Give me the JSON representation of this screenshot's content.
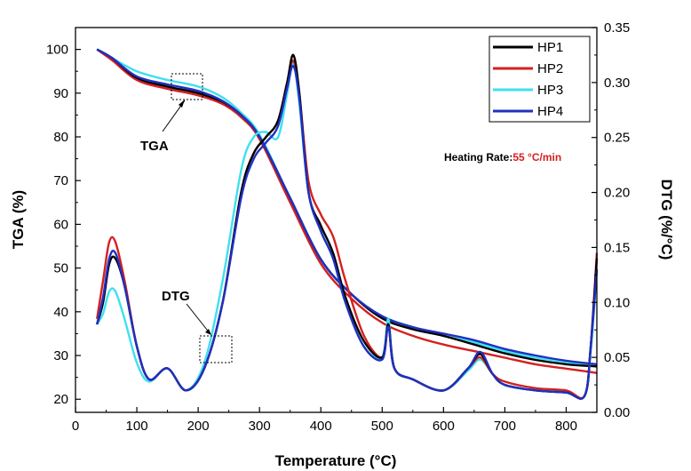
{
  "chart_data": {
    "type": "line",
    "title": "",
    "xlabel": "Temperature (°C)",
    "ylabel_left": "TGA (%)",
    "ylabel_right": "DTG (%/°C)",
    "xlim": [
      0,
      850
    ],
    "ylim_left": [
      17,
      105
    ],
    "ylim_right": [
      0,
      0.35
    ],
    "x_ticks": [
      0,
      100,
      200,
      300,
      400,
      500,
      600,
      700,
      800
    ],
    "y_left_ticks": [
      20,
      30,
      40,
      50,
      60,
      70,
      80,
      90,
      100
    ],
    "y_right_ticks": [
      "0.00",
      "0.05",
      "0.10",
      "0.15",
      "0.20",
      "0.25",
      "0.30",
      "0.35"
    ],
    "grid": false,
    "legend_position": "top-right",
    "annotations": {
      "tga_label": "TGA",
      "dtg_label": "DTG",
      "heating_rate_label": "Heating Rate:",
      "heating_rate_value": "55 °C/min",
      "heating_rate_color": "#d42020"
    },
    "series_colors": {
      "HP1": "#000000",
      "HP2": "#d42020",
      "HP3": "#3ee0f0",
      "HP4": "#2030c0"
    },
    "tga_series": [
      {
        "name": "HP1",
        "x": [
          35,
          60,
          100,
          150,
          200,
          240,
          270,
          300,
          350,
          400,
          450,
          500,
          550,
          600,
          650,
          700,
          750,
          800,
          850
        ],
        "y": [
          100,
          98,
          93.5,
          91.5,
          90,
          88,
          85,
          80,
          66,
          52,
          44,
          38.5,
          36,
          34.5,
          32.5,
          30.5,
          29,
          28,
          27.5
        ]
      },
      {
        "name": "HP2",
        "x": [
          35,
          60,
          100,
          150,
          200,
          240,
          270,
          300,
          350,
          400,
          450,
          500,
          550,
          600,
          650,
          700,
          750,
          800,
          850
        ],
        "y": [
          100,
          97.5,
          93,
          91,
          89.5,
          87.5,
          84.5,
          79.5,
          65,
          51,
          43,
          37.5,
          34.5,
          32.5,
          31,
          29.5,
          28,
          27,
          26
        ]
      },
      {
        "name": "HP3",
        "x": [
          35,
          60,
          100,
          150,
          200,
          240,
          270,
          300,
          350,
          400,
          450,
          500,
          550,
          600,
          650,
          700,
          750,
          800,
          850
        ],
        "y": [
          100,
          98,
          95,
          93,
          91.5,
          89,
          85.5,
          80.5,
          66,
          52,
          44,
          39,
          36.5,
          34.5,
          33,
          31,
          29.5,
          28.5,
          27.5
        ]
      },
      {
        "name": "HP4",
        "x": [
          35,
          60,
          100,
          150,
          200,
          240,
          270,
          300,
          350,
          400,
          450,
          500,
          550,
          600,
          650,
          700,
          750,
          800,
          850
        ],
        "y": [
          100,
          98,
          93.8,
          92,
          90.5,
          88.2,
          85,
          80,
          66,
          52,
          44,
          39,
          36.5,
          35,
          33.5,
          31.5,
          30,
          28.8,
          28
        ]
      }
    ],
    "dtg_series": [
      {
        "name": "HP1",
        "x": [
          35,
          45,
          55,
          65,
          80,
          100,
          120,
          150,
          180,
          210,
          240,
          270,
          290,
          310,
          330,
          345,
          355,
          365,
          380,
          400,
          420,
          440,
          470,
          500,
          510,
          520,
          550,
          600,
          640,
          660,
          680,
          700,
          750,
          800,
          830,
          840,
          850
        ],
        "y": [
          0.08,
          0.1,
          0.135,
          0.14,
          0.115,
          0.06,
          0.03,
          0.04,
          0.02,
          0.04,
          0.1,
          0.2,
          0.235,
          0.25,
          0.265,
          0.3,
          0.325,
          0.29,
          0.2,
          0.17,
          0.145,
          0.105,
          0.065,
          0.05,
          0.08,
          0.04,
          0.03,
          0.02,
          0.04,
          0.053,
          0.035,
          0.025,
          0.02,
          0.018,
          0.015,
          0.06,
          0.14
        ]
      },
      {
        "name": "HP2",
        "x": [
          35,
          45,
          55,
          65,
          80,
          100,
          120,
          150,
          180,
          210,
          240,
          270,
          290,
          310,
          330,
          345,
          355,
          365,
          380,
          400,
          420,
          440,
          470,
          500,
          510,
          520,
          550,
          600,
          640,
          660,
          680,
          700,
          750,
          800,
          830,
          840,
          850
        ],
        "y": [
          0.085,
          0.12,
          0.155,
          0.155,
          0.12,
          0.06,
          0.03,
          0.04,
          0.02,
          0.04,
          0.1,
          0.2,
          0.235,
          0.25,
          0.265,
          0.3,
          0.32,
          0.29,
          0.21,
          0.18,
          0.16,
          0.12,
          0.07,
          0.05,
          0.08,
          0.04,
          0.03,
          0.02,
          0.04,
          0.05,
          0.035,
          0.028,
          0.022,
          0.02,
          0.015,
          0.06,
          0.145
        ]
      },
      {
        "name": "HP3",
        "x": [
          35,
          45,
          55,
          65,
          80,
          100,
          120,
          150,
          180,
          210,
          240,
          270,
          290,
          310,
          330,
          345,
          355,
          365,
          380,
          400,
          420,
          440,
          470,
          500,
          510,
          520,
          550,
          600,
          640,
          660,
          680,
          700,
          750,
          800,
          830,
          840,
          850
        ],
        "y": [
          0.08,
          0.09,
          0.11,
          0.11,
          0.085,
          0.045,
          0.028,
          0.04,
          0.02,
          0.045,
          0.12,
          0.22,
          0.25,
          0.255,
          0.25,
          0.29,
          0.318,
          0.28,
          0.2,
          0.165,
          0.14,
          0.1,
          0.06,
          0.05,
          0.085,
          0.04,
          0.03,
          0.02,
          0.038,
          0.048,
          0.035,
          0.025,
          0.02,
          0.018,
          0.015,
          0.055,
          0.13
        ]
      },
      {
        "name": "HP4",
        "x": [
          35,
          45,
          55,
          65,
          80,
          100,
          120,
          150,
          180,
          210,
          240,
          270,
          290,
          310,
          330,
          345,
          355,
          365,
          380,
          400,
          420,
          440,
          470,
          500,
          510,
          520,
          550,
          600,
          640,
          660,
          680,
          700,
          750,
          800,
          830,
          840,
          850
        ],
        "y": [
          0.08,
          0.105,
          0.14,
          0.145,
          0.115,
          0.06,
          0.03,
          0.04,
          0.02,
          0.04,
          0.1,
          0.195,
          0.23,
          0.245,
          0.26,
          0.295,
          0.315,
          0.285,
          0.2,
          0.165,
          0.14,
          0.1,
          0.06,
          0.048,
          0.078,
          0.04,
          0.03,
          0.02,
          0.04,
          0.055,
          0.035,
          0.025,
          0.02,
          0.018,
          0.015,
          0.06,
          0.13
        ]
      }
    ]
  }
}
